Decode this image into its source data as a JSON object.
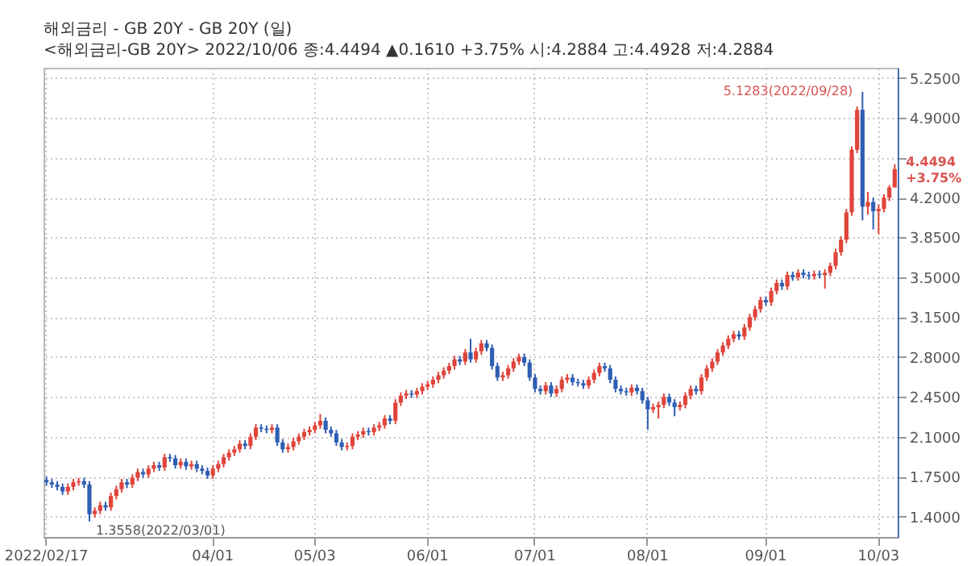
{
  "chart_data": {
    "type": "candlestick",
    "title": "해외금리 - GB    20Y - GB 20Y (일)",
    "subtitle": "<해외금리-GB 20Y> 2022/10/06 종:4.4494 ▲0.1610 +3.75% 시:4.2884 고:4.4928 저:4.2884",
    "categories": [
      "2022/02/17",
      null,
      null,
      null,
      null,
      null,
      null,
      null,
      null,
      null,
      null,
      null,
      null,
      null,
      null,
      null,
      null,
      null,
      null,
      null,
      null,
      null,
      null,
      null,
      null,
      null,
      null,
      null,
      null,
      null,
      null,
      "04/01",
      null,
      null,
      null,
      null,
      null,
      null,
      null,
      null,
      null,
      null,
      null,
      null,
      null,
      null,
      null,
      null,
      null,
      null,
      "05/03",
      null,
      null,
      null,
      null,
      null,
      null,
      null,
      null,
      null,
      null,
      null,
      null,
      null,
      null,
      null,
      null,
      null,
      null,
      null,
      null,
      "06/01",
      null,
      null,
      null,
      null,
      null,
      null,
      null,
      null,
      null,
      null,
      null,
      null,
      null,
      null,
      null,
      null,
      null,
      null,
      null,
      "07/01",
      null,
      null,
      null,
      null,
      null,
      null,
      null,
      null,
      null,
      null,
      null,
      null,
      null,
      null,
      null,
      null,
      null,
      null,
      null,
      null,
      "08/01",
      null,
      null,
      null,
      null,
      null,
      null,
      null,
      null,
      null,
      null,
      null,
      null,
      null,
      null,
      null,
      null,
      null,
      null,
      null,
      null,
      null,
      "09/01",
      null,
      null,
      null,
      null,
      null,
      null,
      null,
      null,
      null,
      null,
      null,
      null,
      null,
      null,
      null,
      null,
      null,
      null,
      null,
      null,
      "10/03",
      null,
      null,
      null
    ],
    "ohlc": [
      [
        1.72,
        1.75,
        1.67,
        1.7
      ],
      [
        1.7,
        1.73,
        1.65,
        1.68
      ],
      [
        1.68,
        1.71,
        1.63,
        1.66
      ],
      [
        1.66,
        1.69,
        1.59,
        1.62
      ],
      [
        1.62,
        1.69,
        1.59,
        1.66
      ],
      [
        1.66,
        1.73,
        1.63,
        1.7
      ],
      [
        1.7,
        1.74,
        1.67,
        1.71
      ],
      [
        1.71,
        1.74,
        1.65,
        1.68
      ],
      [
        1.68,
        1.71,
        1.3558,
        1.42
      ],
      [
        1.42,
        1.48,
        1.39,
        1.45
      ],
      [
        1.45,
        1.53,
        1.42,
        1.5
      ],
      [
        1.5,
        1.53,
        1.45,
        1.48
      ],
      [
        1.48,
        1.61,
        1.45,
        1.58
      ],
      [
        1.58,
        1.67,
        1.55,
        1.64
      ],
      [
        1.64,
        1.73,
        1.61,
        1.7
      ],
      [
        1.7,
        1.73,
        1.65,
        1.68
      ],
      [
        1.68,
        1.77,
        1.65,
        1.74
      ],
      [
        1.74,
        1.82,
        1.71,
        1.79
      ],
      [
        1.79,
        1.82,
        1.74,
        1.77
      ],
      [
        1.77,
        1.85,
        1.74,
        1.82
      ],
      [
        1.82,
        1.88,
        1.79,
        1.85
      ],
      [
        1.85,
        1.88,
        1.8,
        1.83
      ],
      [
        1.83,
        1.95,
        1.8,
        1.92
      ],
      [
        1.92,
        1.95,
        1.88,
        1.91
      ],
      [
        1.91,
        1.94,
        1.82,
        1.85
      ],
      [
        1.85,
        1.91,
        1.82,
        1.88
      ],
      [
        1.88,
        1.91,
        1.81,
        1.84
      ],
      [
        1.84,
        1.89,
        1.81,
        1.86
      ],
      [
        1.86,
        1.89,
        1.79,
        1.82
      ],
      [
        1.82,
        1.85,
        1.77,
        1.8
      ],
      [
        1.8,
        1.83,
        1.73,
        1.76
      ],
      [
        1.76,
        1.85,
        1.73,
        1.82
      ],
      [
        1.82,
        1.89,
        1.79,
        1.86
      ],
      [
        1.86,
        1.95,
        1.83,
        1.92
      ],
      [
        1.92,
        1.99,
        1.89,
        1.96
      ],
      [
        1.96,
        2.02,
        1.93,
        1.99
      ],
      [
        1.99,
        2.07,
        1.96,
        2.04
      ],
      [
        2.04,
        2.07,
        1.99,
        2.02
      ],
      [
        2.02,
        2.13,
        1.99,
        2.1
      ],
      [
        2.1,
        2.21,
        2.07,
        2.18
      ],
      [
        2.18,
        2.21,
        2.14,
        2.17
      ],
      [
        2.17,
        2.2,
        2.13,
        2.16
      ],
      [
        2.16,
        2.21,
        2.13,
        2.18
      ],
      [
        2.18,
        2.21,
        2.02,
        2.05
      ],
      [
        2.05,
        2.08,
        1.96,
        1.99
      ],
      [
        1.99,
        2.04,
        1.96,
        2.01
      ],
      [
        2.01,
        2.09,
        1.98,
        2.06
      ],
      [
        2.06,
        2.13,
        2.03,
        2.1
      ],
      [
        2.1,
        2.17,
        2.07,
        2.14
      ],
      [
        2.14,
        2.19,
        2.11,
        2.16
      ],
      [
        2.16,
        2.23,
        2.13,
        2.2
      ],
      [
        2.2,
        2.3,
        2.17,
        2.24
      ],
      [
        2.24,
        2.27,
        2.13,
        2.16
      ],
      [
        2.16,
        2.19,
        2.1,
        2.13
      ],
      [
        2.13,
        2.16,
        2.02,
        2.05
      ],
      [
        2.05,
        2.08,
        1.98,
        2.01
      ],
      [
        2.01,
        2.05,
        1.98,
        2.02
      ],
      [
        2.02,
        2.13,
        1.99,
        2.1
      ],
      [
        2.1,
        2.15,
        2.07,
        2.12
      ],
      [
        2.12,
        2.18,
        2.09,
        2.15
      ],
      [
        2.15,
        2.18,
        2.11,
        2.14
      ],
      [
        2.14,
        2.21,
        2.11,
        2.18
      ],
      [
        2.18,
        2.23,
        2.15,
        2.2
      ],
      [
        2.2,
        2.29,
        2.17,
        2.26
      ],
      [
        2.26,
        2.29,
        2.21,
        2.24
      ],
      [
        2.24,
        2.43,
        2.21,
        2.4
      ],
      [
        2.4,
        2.49,
        2.37,
        2.46
      ],
      [
        2.46,
        2.51,
        2.43,
        2.48
      ],
      [
        2.48,
        2.51,
        2.44,
        2.47
      ],
      [
        2.47,
        2.53,
        2.44,
        2.5
      ],
      [
        2.5,
        2.57,
        2.47,
        2.54
      ],
      [
        2.54,
        2.59,
        2.51,
        2.56
      ],
      [
        2.56,
        2.63,
        2.53,
        2.6
      ],
      [
        2.6,
        2.67,
        2.57,
        2.64
      ],
      [
        2.64,
        2.71,
        2.61,
        2.68
      ],
      [
        2.68,
        2.75,
        2.65,
        2.72
      ],
      [
        2.72,
        2.81,
        2.69,
        2.78
      ],
      [
        2.78,
        2.81,
        2.73,
        2.76
      ],
      [
        2.76,
        2.87,
        2.73,
        2.84
      ],
      [
        2.84,
        2.96,
        2.75,
        2.78
      ],
      [
        2.78,
        2.88,
        2.75,
        2.85
      ],
      [
        2.85,
        2.95,
        2.82,
        2.92
      ],
      [
        2.92,
        2.95,
        2.85,
        2.88
      ],
      [
        2.88,
        2.91,
        2.69,
        2.72
      ],
      [
        2.72,
        2.75,
        2.59,
        2.62
      ],
      [
        2.62,
        2.67,
        2.59,
        2.64
      ],
      [
        2.64,
        2.73,
        2.61,
        2.7
      ],
      [
        2.7,
        2.79,
        2.67,
        2.76
      ],
      [
        2.76,
        2.83,
        2.73,
        2.8
      ],
      [
        2.8,
        2.83,
        2.72,
        2.75
      ],
      [
        2.75,
        2.78,
        2.59,
        2.62
      ],
      [
        2.62,
        2.65,
        2.49,
        2.52
      ],
      [
        2.52,
        2.55,
        2.47,
        2.5
      ],
      [
        2.5,
        2.58,
        2.47,
        2.55
      ],
      [
        2.55,
        2.58,
        2.45,
        2.48
      ],
      [
        2.48,
        2.55,
        2.45,
        2.52
      ],
      [
        2.52,
        2.63,
        2.49,
        2.6
      ],
      [
        2.6,
        2.65,
        2.57,
        2.62
      ],
      [
        2.62,
        2.65,
        2.55,
        2.58
      ],
      [
        2.58,
        2.61,
        2.54,
        2.57
      ],
      [
        2.57,
        2.6,
        2.52,
        2.55
      ],
      [
        2.55,
        2.63,
        2.52,
        2.6
      ],
      [
        2.6,
        2.69,
        2.57,
        2.66
      ],
      [
        2.66,
        2.75,
        2.63,
        2.72
      ],
      [
        2.72,
        2.75,
        2.67,
        2.7
      ],
      [
        2.7,
        2.73,
        2.57,
        2.6
      ],
      [
        2.6,
        2.63,
        2.49,
        2.52
      ],
      [
        2.52,
        2.55,
        2.47,
        2.5
      ],
      [
        2.5,
        2.53,
        2.46,
        2.49
      ],
      [
        2.49,
        2.56,
        2.46,
        2.53
      ],
      [
        2.53,
        2.56,
        2.47,
        2.5
      ],
      [
        2.5,
        2.53,
        2.39,
        2.42
      ],
      [
        2.42,
        2.45,
        2.16,
        2.34
      ],
      [
        2.34,
        2.39,
        2.31,
        2.36
      ],
      [
        2.36,
        2.41,
        2.26,
        2.38
      ],
      [
        2.38,
        2.48,
        2.35,
        2.45
      ],
      [
        2.45,
        2.48,
        2.37,
        2.4
      ],
      [
        2.4,
        2.43,
        2.28,
        2.36
      ],
      [
        2.36,
        2.41,
        2.33,
        2.38
      ],
      [
        2.38,
        2.49,
        2.35,
        2.46
      ],
      [
        2.46,
        2.55,
        2.43,
        2.52
      ],
      [
        2.52,
        2.55,
        2.47,
        2.5
      ],
      [
        2.5,
        2.65,
        2.47,
        2.62
      ],
      [
        2.62,
        2.73,
        2.59,
        2.7
      ],
      [
        2.7,
        2.79,
        2.67,
        2.76
      ],
      [
        2.76,
        2.87,
        2.73,
        2.84
      ],
      [
        2.84,
        2.93,
        2.81,
        2.9
      ],
      [
        2.9,
        2.99,
        2.87,
        2.96
      ],
      [
        2.96,
        3.03,
        2.93,
        3.0
      ],
      [
        3.0,
        3.03,
        2.95,
        2.98
      ],
      [
        2.98,
        3.09,
        2.95,
        3.06
      ],
      [
        3.06,
        3.18,
        3.03,
        3.15
      ],
      [
        3.15,
        3.25,
        3.12,
        3.22
      ],
      [
        3.22,
        3.33,
        3.19,
        3.3
      ],
      [
        3.3,
        3.33,
        3.25,
        3.28
      ],
      [
        3.28,
        3.41,
        3.25,
        3.38
      ],
      [
        3.38,
        3.48,
        3.35,
        3.45
      ],
      [
        3.45,
        3.48,
        3.39,
        3.42
      ],
      [
        3.42,
        3.55,
        3.39,
        3.52
      ],
      [
        3.52,
        3.55,
        3.47,
        3.5
      ],
      [
        3.5,
        3.57,
        3.47,
        3.54
      ],
      [
        3.54,
        3.57,
        3.49,
        3.52
      ],
      [
        3.52,
        3.55,
        3.48,
        3.51
      ],
      [
        3.51,
        3.56,
        3.48,
        3.53
      ],
      [
        3.53,
        3.56,
        3.49,
        3.52
      ],
      [
        3.52,
        3.57,
        3.4,
        3.54
      ],
      [
        3.54,
        3.63,
        3.51,
        3.6
      ],
      [
        3.6,
        3.75,
        3.57,
        3.72
      ],
      [
        3.72,
        3.86,
        3.69,
        3.83
      ],
      [
        3.83,
        4.1,
        3.8,
        4.07
      ],
      [
        4.07,
        4.65,
        4.04,
        4.62
      ],
      [
        4.62,
        5.0,
        4.59,
        4.97
      ],
      [
        4.97,
        5.1283,
        4.0,
        4.12
      ],
      [
        4.12,
        4.25,
        4.05,
        4.16
      ],
      [
        4.16,
        4.2,
        3.92,
        4.08
      ],
      [
        4.08,
        4.14,
        3.88,
        4.1
      ],
      [
        4.1,
        4.23,
        4.07,
        4.2
      ],
      [
        4.2,
        4.31,
        4.17,
        4.2884
      ],
      [
        4.2884,
        4.4928,
        4.2884,
        4.4494
      ]
    ],
    "colors": [
      "#2f5fb3",
      "#2f5fb3",
      "#2f5fb3",
      "#2f5fb3",
      "#e0443a",
      "#e0443a",
      "#e0443a",
      "#2f5fb3",
      "#2f5fb3",
      "#e0443a",
      "#e0443a",
      "#2f5fb3",
      "#e0443a",
      "#e0443a",
      "#e0443a",
      "#2f5fb3",
      "#e0443a",
      "#e0443a",
      "#2f5fb3",
      "#e0443a",
      "#e0443a",
      "#2f5fb3",
      "#e0443a",
      "#2f5fb3",
      "#2f5fb3",
      "#e0443a",
      "#2f5fb3",
      "#e0443a",
      "#2f5fb3",
      "#2f5fb3",
      "#2f5fb3",
      "#e0443a",
      "#e0443a",
      "#e0443a",
      "#e0443a",
      "#e0443a",
      "#e0443a",
      "#2f5fb3",
      "#e0443a",
      "#e0443a",
      "#2f5fb3",
      "#2f5fb3",
      "#e0443a",
      "#2f5fb3",
      "#2f5fb3",
      "#e0443a",
      "#e0443a",
      "#e0443a",
      "#e0443a",
      "#e0443a",
      "#e0443a",
      "#e0443a",
      "#2f5fb3",
      "#2f5fb3",
      "#2f5fb3",
      "#2f5fb3",
      "#e0443a",
      "#e0443a",
      "#e0443a",
      "#e0443a",
      "#2f5fb3",
      "#e0443a",
      "#e0443a",
      "#e0443a",
      "#2f5fb3",
      "#e0443a",
      "#e0443a",
      "#e0443a",
      "#2f5fb3",
      "#e0443a",
      "#e0443a",
      "#e0443a",
      "#e0443a",
      "#e0443a",
      "#e0443a",
      "#e0443a",
      "#e0443a",
      "#2f5fb3",
      "#e0443a",
      "#2f5fb3",
      "#e0443a",
      "#e0443a",
      "#2f5fb3",
      "#2f5fb3",
      "#2f5fb3",
      "#e0443a",
      "#e0443a",
      "#e0443a",
      "#e0443a",
      "#2f5fb3",
      "#2f5fb3",
      "#2f5fb3",
      "#2f5fb3",
      "#e0443a",
      "#2f5fb3",
      "#e0443a",
      "#e0443a",
      "#e0443a",
      "#2f5fb3",
      "#2f5fb3",
      "#2f5fb3",
      "#e0443a",
      "#e0443a",
      "#e0443a",
      "#2f5fb3",
      "#2f5fb3",
      "#2f5fb3",
      "#2f5fb3",
      "#2f5fb3",
      "#e0443a",
      "#2f5fb3",
      "#2f5fb3",
      "#2f5fb3",
      "#e0443a",
      "#e0443a",
      "#e0443a",
      "#2f5fb3",
      "#2f5fb3",
      "#e0443a",
      "#e0443a",
      "#e0443a",
      "#2f5fb3",
      "#e0443a",
      "#e0443a",
      "#e0443a",
      "#e0443a",
      "#e0443a",
      "#e0443a",
      "#e0443a",
      "#2f5fb3",
      "#e0443a",
      "#e0443a",
      "#e0443a",
      "#e0443a",
      "#2f5fb3",
      "#e0443a",
      "#e0443a",
      "#2f5fb3",
      "#e0443a",
      "#2f5fb3",
      "#e0443a",
      "#2f5fb3",
      "#2f5fb3",
      "#e0443a",
      "#2f5fb3",
      "#e0443a",
      "#e0443a",
      "#e0443a",
      "#e0443a",
      "#e0443a",
      "#e0443a",
      "#e0443a",
      "#2f5fb3",
      "#e0443a",
      "#2f5fb3",
      "#e0443a",
      "#e0443a",
      "#e0443a",
      "#e0443a"
    ],
    "ylim": [
      1.22,
      5.34
    ],
    "yticks": [
      {
        "value": 1.4,
        "label": "1.4000"
      },
      {
        "value": 1.75,
        "label": "1.7500"
      },
      {
        "value": 2.1,
        "label": "2.1000"
      },
      {
        "value": 2.45,
        "label": "2.4500"
      },
      {
        "value": 2.8,
        "label": "2.8000"
      },
      {
        "value": 3.15,
        "label": "3.1500"
      },
      {
        "value": 3.5,
        "label": "3.5000"
      },
      {
        "value": 3.85,
        "label": "3.8500"
      },
      {
        "value": 4.2,
        "label": "4.2000"
      },
      {
        "value": 4.55,
        "label": null
      },
      {
        "value": 4.9,
        "label": "4.9000"
      },
      {
        "value": 5.25,
        "label": "5.2500"
      }
    ],
    "grid": true,
    "annotations": [
      "5.1283(2022/09/28)",
      "1.3558(2022/03/01)",
      "4.4494 +3.75%"
    ]
  }
}
